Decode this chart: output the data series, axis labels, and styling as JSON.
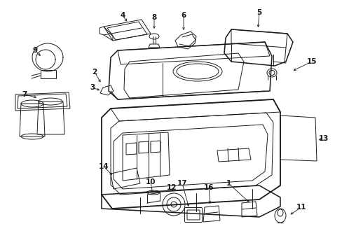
{
  "bg_color": "#ffffff",
  "line_color": "#1a1a1a",
  "fig_width": 4.89,
  "fig_height": 3.6,
  "dpi": 100,
  "lw_main": 1.1,
  "lw_thin": 0.7,
  "lw_thick": 1.3
}
